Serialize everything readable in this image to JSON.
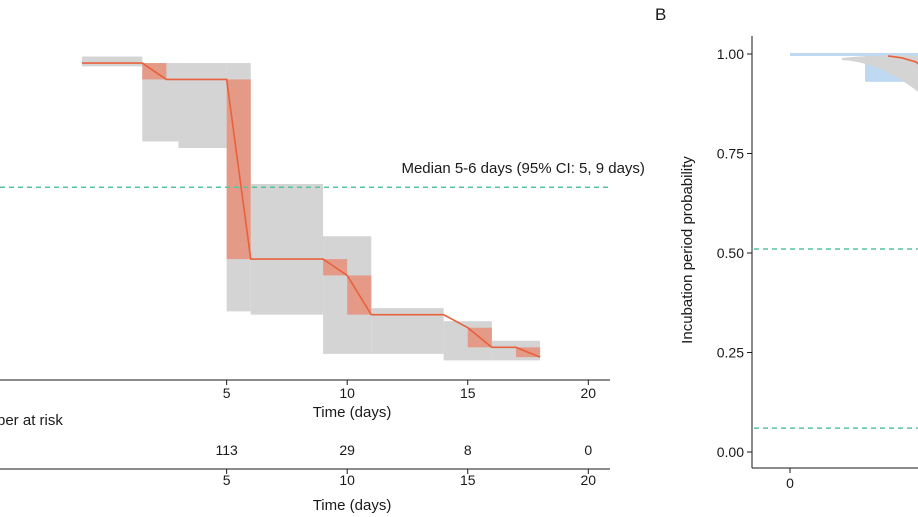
{
  "colors": {
    "curve": "#e8613c",
    "ci_band": "#d4d4d4",
    "step_band": "#e59a88",
    "median_line": "#55c4a0",
    "blue_band": "#bfd9f2",
    "axis": "#1a1a1a"
  },
  "chart_data": [
    {
      "type": "line",
      "title": "",
      "xlabel": "Time (days)",
      "ylabel": "",
      "xlim": [
        -4.4,
        20.9
      ],
      "ylim": [
        0,
        1.01
      ],
      "x_ticks": [
        5,
        10,
        15,
        20
      ],
      "grid": false,
      "series": [
        {
          "x": [
            -1,
            1.5,
            2.5,
            5,
            6,
            9,
            10,
            11,
            14,
            15,
            16,
            17,
            18
          ],
          "y": [
            0.97,
            0.97,
            0.92,
            0.92,
            0.37,
            0.37,
            0.32,
            0.2,
            0.2,
            0.16,
            0.1,
            0.1,
            0.07
          ]
        }
      ],
      "ci_band": [
        {
          "x0": -1,
          "x1": 1.5,
          "lo": 0.96,
          "hi": 0.99
        },
        {
          "x0": 1.5,
          "x1": 3,
          "lo": 0.73,
          "hi": 0.97
        },
        {
          "x0": 3,
          "x1": 5,
          "lo": 0.71,
          "hi": 0.97
        },
        {
          "x0": 5,
          "x1": 6,
          "lo": 0.21,
          "hi": 0.97
        },
        {
          "x0": 6,
          "x1": 9,
          "lo": 0.2,
          "hi": 0.6
        },
        {
          "x0": 9,
          "x1": 11,
          "lo": 0.08,
          "hi": 0.44
        },
        {
          "x0": 11,
          "x1": 14,
          "lo": 0.08,
          "hi": 0.22
        },
        {
          "x0": 14,
          "x1": 16,
          "lo": 0.06,
          "hi": 0.18
        },
        {
          "x0": 16,
          "x1": 18,
          "lo": 0.06,
          "hi": 0.12
        }
      ],
      "step_band": [
        {
          "x0": 1.5,
          "x1": 2.5,
          "lo": 0.92,
          "hi": 0.97
        },
        {
          "x0": 5,
          "x1": 6,
          "lo": 0.37,
          "hi": 0.92
        },
        {
          "x0": 9,
          "x1": 10,
          "lo": 0.32,
          "hi": 0.37
        },
        {
          "x0": 10,
          "x1": 11,
          "lo": 0.2,
          "hi": 0.32
        },
        {
          "x0": 15,
          "x1": 16,
          "lo": 0.1,
          "hi": 0.16
        },
        {
          "x0": 17,
          "x1": 18,
          "lo": 0.07,
          "hi": 0.1
        }
      ],
      "median_line_y": 0.59,
      "annotation": "Median 5-6 days (95% CI: 5, 9 days)"
    },
    {
      "type": "table",
      "title": "ber at risk",
      "xlabel": "Time (days)",
      "xlim": [
        -4.4,
        20.9
      ],
      "x_ticks": [
        5,
        10,
        15,
        20
      ],
      "values": [
        {
          "x": 5,
          "value": "113"
        },
        {
          "x": 10,
          "value": "29"
        },
        {
          "x": 15,
          "value": "8"
        },
        {
          "x": 20,
          "value": "0"
        }
      ]
    },
    {
      "type": "line",
      "panel_label": "B",
      "title": "",
      "ylabel": "Incubation period probability",
      "xlim": [
        0,
        3.6
      ],
      "ylim": [
        0,
        1.01
      ],
      "y_ticks": [
        {
          "value": 0,
          "label": "0.00"
        },
        {
          "value": 0.25,
          "label": "0.25"
        },
        {
          "value": 0.5,
          "label": "0.50"
        },
        {
          "value": 0.75,
          "label": "0.75"
        },
        {
          "value": 1,
          "label": "1.00"
        }
      ],
      "x_ticks": [
        0
      ],
      "grid": false,
      "reference_lines_y": [
        0.51,
        0.06
      ],
      "series": [
        {
          "x": [
            2.1,
            2.4,
            2.7,
            3.0,
            3.3
          ],
          "y": [
            0.995,
            0.99,
            0.98,
            0.95,
            0.93
          ]
        }
      ]
    }
  ]
}
